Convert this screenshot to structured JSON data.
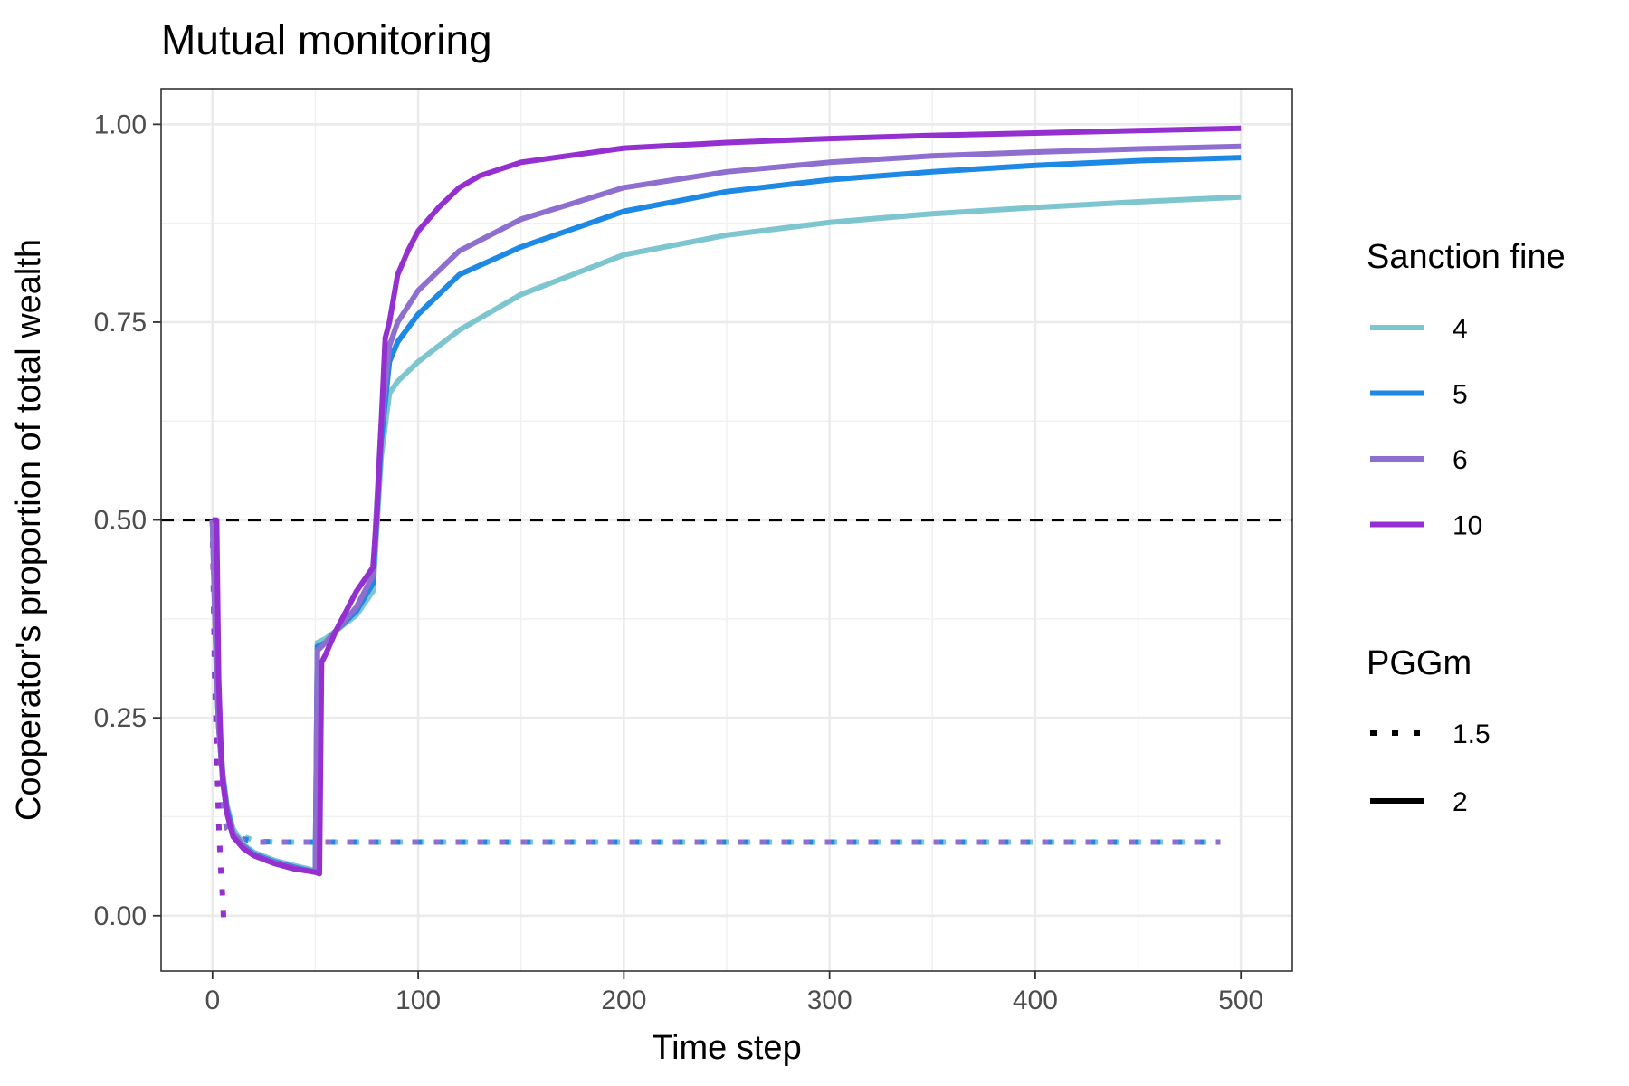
{
  "chart_data": {
    "type": "line",
    "title": "Mutual monitoring",
    "xlabel": "Time step",
    "ylabel": "Cooperator's proportion of total wealth",
    "xlim": [
      -25,
      525
    ],
    "ylim": [
      -0.07,
      1.045
    ],
    "x_ticks": [
      0,
      100,
      200,
      300,
      400,
      500
    ],
    "x_tick_labels": [
      "0",
      "100",
      "200",
      "300",
      "400",
      "500"
    ],
    "y_ticks": [
      0,
      0.25,
      0.5,
      0.75,
      1
    ],
    "y_tick_labels": [
      "0.00",
      "0.25",
      "0.50",
      "0.75",
      "1.00"
    ],
    "grid": true,
    "reference_line": {
      "y": 0.5,
      "style": "dashed",
      "color": "#000000"
    },
    "legend_position": "right",
    "legend_color": {
      "title": "Sanction fine",
      "entries": [
        {
          "label": "4",
          "color": "#7EC6CF"
        },
        {
          "label": "5",
          "color": "#1E88E5"
        },
        {
          "label": "6",
          "color": "#8E6FD0"
        },
        {
          "label": "10",
          "color": "#9530D0"
        }
      ]
    },
    "legend_linetype": {
      "title": "PGGm",
      "entries": [
        {
          "label": "1.5",
          "linetype": "dotted"
        },
        {
          "label": "2",
          "linetype": "solid"
        }
      ]
    },
    "series": [
      {
        "fine": "4",
        "pggm": "1.5",
        "color": "#7EC6CF",
        "dash": "dotted",
        "x": [
          0,
          1,
          2,
          3,
          5,
          7,
          10,
          15,
          20,
          30,
          50,
          100,
          200,
          300,
          400,
          490
        ],
        "y": [
          0.5,
          0.33,
          0.25,
          0.2,
          0.15,
          0.125,
          0.11,
          0.1,
          0.095,
          0.093,
          0.093,
          0.093,
          0.093,
          0.093,
          0.093,
          0.093
        ]
      },
      {
        "fine": "5",
        "pggm": "1.5",
        "color": "#1E88E5",
        "dash": "dotted",
        "x": [
          0,
          1,
          2,
          3,
          5,
          7,
          10,
          15,
          20,
          30,
          50,
          100,
          200,
          300,
          400,
          490
        ],
        "y": [
          0.5,
          0.32,
          0.24,
          0.19,
          0.145,
          0.12,
          0.105,
          0.097,
          0.094,
          0.093,
          0.093,
          0.093,
          0.093,
          0.093,
          0.093,
          0.093
        ]
      },
      {
        "fine": "6",
        "pggm": "1.5",
        "color": "#8E6FD0",
        "dash": "dotted",
        "x": [
          0,
          1,
          2,
          3,
          5,
          7,
          10,
          15,
          20,
          30,
          50,
          100,
          200,
          300,
          400,
          490
        ],
        "y": [
          0.5,
          0.3,
          0.22,
          0.17,
          0.13,
          0.11,
          0.1,
          0.095,
          0.093,
          0.093,
          0.093,
          0.093,
          0.093,
          0.093,
          0.093,
          0.093
        ]
      },
      {
        "fine": "10",
        "pggm": "1.5",
        "color": "#9530D0",
        "dash": "dotted",
        "x": [
          0,
          1,
          2,
          3,
          4,
          5,
          5.5
        ],
        "y": [
          0.5,
          0.34,
          0.21,
          0.12,
          0.06,
          0.02,
          -0.01
        ]
      },
      {
        "fine": "4",
        "pggm": "2",
        "color": "#7EC6CF",
        "dash": "solid",
        "x": [
          0,
          1,
          2,
          3,
          5,
          7,
          10,
          15,
          20,
          30,
          40,
          50,
          51,
          55,
          60,
          70,
          78,
          82,
          86,
          90,
          100,
          120,
          150,
          200,
          250,
          300,
          350,
          400,
          450,
          500
        ],
        "y": [
          0.5,
          0.4,
          0.32,
          0.25,
          0.18,
          0.14,
          0.11,
          0.09,
          0.08,
          0.07,
          0.063,
          0.057,
          0.345,
          0.35,
          0.36,
          0.38,
          0.41,
          0.58,
          0.66,
          0.675,
          0.7,
          0.74,
          0.785,
          0.835,
          0.86,
          0.876,
          0.887,
          0.895,
          0.902,
          0.908
        ]
      },
      {
        "fine": "5",
        "pggm": "2",
        "color": "#1E88E5",
        "dash": "solid",
        "x": [
          0,
          1,
          2,
          3,
          5,
          7,
          10,
          15,
          20,
          30,
          40,
          50,
          51,
          55,
          60,
          70,
          78,
          82,
          86,
          90,
          100,
          120,
          150,
          200,
          250,
          300,
          350,
          400,
          450,
          500
        ],
        "y": [
          0.5,
          0.4,
          0.31,
          0.24,
          0.175,
          0.135,
          0.105,
          0.088,
          0.078,
          0.068,
          0.061,
          0.055,
          0.34,
          0.345,
          0.36,
          0.385,
          0.42,
          0.6,
          0.7,
          0.725,
          0.76,
          0.81,
          0.845,
          0.89,
          0.915,
          0.93,
          0.94,
          0.948,
          0.954,
          0.958
        ]
      },
      {
        "fine": "6",
        "pggm": "2",
        "color": "#8E6FD0",
        "dash": "solid",
        "x": [
          0,
          1,
          2,
          3,
          5,
          7,
          10,
          15,
          20,
          30,
          40,
          50,
          51,
          55,
          60,
          70,
          78,
          82,
          86,
          90,
          100,
          120,
          150,
          200,
          250,
          300,
          350,
          400,
          450,
          500
        ],
        "y": [
          0.5,
          0.39,
          0.3,
          0.24,
          0.17,
          0.13,
          0.105,
          0.087,
          0.077,
          0.067,
          0.06,
          0.055,
          0.335,
          0.345,
          0.36,
          0.39,
          0.43,
          0.62,
          0.72,
          0.75,
          0.79,
          0.84,
          0.88,
          0.92,
          0.94,
          0.952,
          0.96,
          0.965,
          0.969,
          0.972
        ]
      },
      {
        "fine": "10",
        "pggm": "2",
        "color": "#9530D0",
        "dash": "solid",
        "x": [
          0,
          1,
          2,
          3,
          4,
          5,
          7,
          10,
          15,
          20,
          30,
          40,
          50,
          52,
          53,
          55,
          60,
          70,
          78,
          80,
          82,
          84,
          86,
          90,
          95,
          100,
          110,
          120,
          130,
          150,
          200,
          250,
          300,
          350,
          400,
          450,
          500
        ],
        "y": [
          0.5,
          0.5,
          0.5,
          0.3,
          0.22,
          0.17,
          0.13,
          0.1,
          0.085,
          0.076,
          0.066,
          0.059,
          0.055,
          0.053,
          0.32,
          0.33,
          0.36,
          0.41,
          0.44,
          0.51,
          0.62,
          0.73,
          0.75,
          0.81,
          0.84,
          0.865,
          0.895,
          0.92,
          0.935,
          0.952,
          0.97,
          0.977,
          0.982,
          0.986,
          0.989,
          0.992,
          0.995
        ]
      }
    ]
  }
}
